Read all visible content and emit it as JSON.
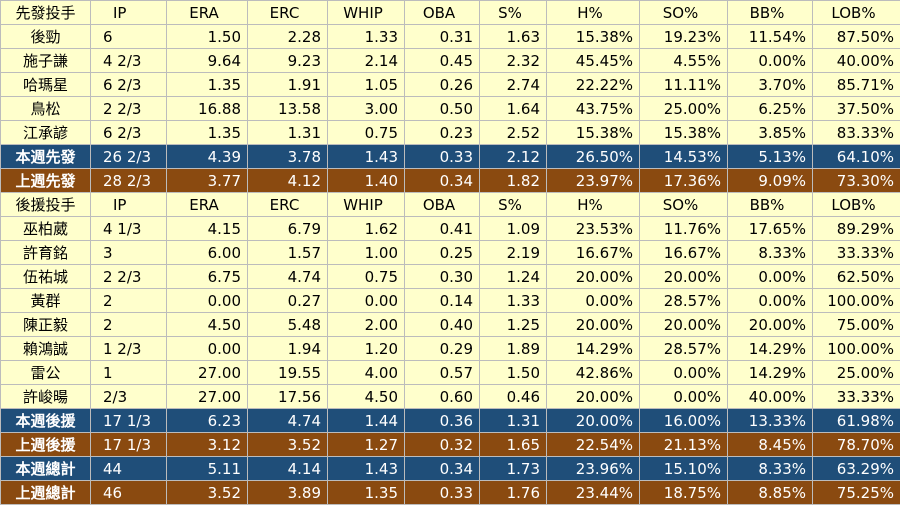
{
  "colors": {
    "row_bg": "#ffffcc",
    "summary_blue": "#1f4e79",
    "summary_orange": "#8a4a10",
    "grid": "#bcbcbc"
  },
  "starters_header": [
    "先發投手",
    "IP",
    "ERA",
    "ERC",
    "WHIP",
    "OBA",
    "S%",
    "H%",
    "SO%",
    "BB%",
    "LOB%"
  ],
  "starters": [
    [
      "後勁",
      "6",
      "1.50",
      "2.28",
      "1.33",
      "0.31",
      "1.63",
      "15.38%",
      "19.23%",
      "11.54%",
      "87.50%"
    ],
    [
      "施子謙",
      "4 2/3",
      "9.64",
      "9.23",
      "2.14",
      "0.45",
      "2.32",
      "45.45%",
      "4.55%",
      "0.00%",
      "40.00%"
    ],
    [
      "哈瑪星",
      "6 2/3",
      "1.35",
      "1.91",
      "1.05",
      "0.26",
      "2.74",
      "22.22%",
      "11.11%",
      "3.70%",
      "85.71%"
    ],
    [
      "鳥松",
      "2 2/3",
      "16.88",
      "13.58",
      "3.00",
      "0.50",
      "1.64",
      "43.75%",
      "25.00%",
      "6.25%",
      "37.50%"
    ],
    [
      "江承諺",
      "6 2/3",
      "1.35",
      "1.31",
      "0.75",
      "0.23",
      "2.52",
      "15.38%",
      "15.38%",
      "3.85%",
      "83.33%"
    ]
  ],
  "starters_this_week": [
    "本週先發",
    "26 2/3",
    "4.39",
    "3.78",
    "1.43",
    "0.33",
    "2.12",
    "26.50%",
    "14.53%",
    "5.13%",
    "64.10%"
  ],
  "starters_last_week": [
    "上週先發",
    "28 2/3",
    "3.77",
    "4.12",
    "1.40",
    "0.34",
    "1.82",
    "23.97%",
    "17.36%",
    "9.09%",
    "73.30%"
  ],
  "relievers_header": [
    "後援投手",
    "IP",
    "ERA",
    "ERC",
    "WHIP",
    "OBA",
    "S%",
    "H%",
    "SO%",
    "BB%",
    "LOB%"
  ],
  "relievers": [
    [
      "巫柏葳",
      "4 1/3",
      "4.15",
      "6.79",
      "1.62",
      "0.41",
      "1.09",
      "23.53%",
      "11.76%",
      "17.65%",
      "89.29%"
    ],
    [
      "許育銘",
      "3",
      "6.00",
      "1.57",
      "1.00",
      "0.25",
      "2.19",
      "16.67%",
      "16.67%",
      "8.33%",
      "33.33%"
    ],
    [
      "伍祐城",
      "2 2/3",
      "6.75",
      "4.74",
      "0.75",
      "0.30",
      "1.24",
      "20.00%",
      "20.00%",
      "0.00%",
      "62.50%"
    ],
    [
      "黃群",
      "2",
      "0.00",
      "0.27",
      "0.00",
      "0.14",
      "1.33",
      "0.00%",
      "28.57%",
      "0.00%",
      "100.00%"
    ],
    [
      "陳正毅",
      "2",
      "4.50",
      "5.48",
      "2.00",
      "0.40",
      "1.25",
      "20.00%",
      "20.00%",
      "20.00%",
      "75.00%"
    ],
    [
      "賴鴻誠",
      "1 2/3",
      "0.00",
      "1.94",
      "1.20",
      "0.29",
      "1.89",
      "14.29%",
      "28.57%",
      "14.29%",
      "100.00%"
    ],
    [
      "雷公",
      "1",
      "27.00",
      "19.55",
      "4.00",
      "0.57",
      "1.50",
      "42.86%",
      "0.00%",
      "14.29%",
      "25.00%"
    ],
    [
      "許峻暘",
      "2/3",
      "27.00",
      "17.56",
      "4.50",
      "0.60",
      "0.46",
      "20.00%",
      "0.00%",
      "40.00%",
      "33.33%"
    ]
  ],
  "relievers_this_week": [
    "本週後援",
    "17 1/3",
    "6.23",
    "4.74",
    "1.44",
    "0.36",
    "1.31",
    "20.00%",
    "16.00%",
    "13.33%",
    "61.98%"
  ],
  "relievers_last_week": [
    "上週後援",
    "17 1/3",
    "3.12",
    "3.52",
    "1.27",
    "0.32",
    "1.65",
    "22.54%",
    "21.13%",
    "8.45%",
    "78.70%"
  ],
  "total_this_week": [
    "本週總計",
    "44",
    "5.11",
    "4.14",
    "1.43",
    "0.34",
    "1.73",
    "23.96%",
    "15.10%",
    "8.33%",
    "63.29%"
  ],
  "total_last_week": [
    "上週總計",
    "46",
    "3.52",
    "3.89",
    "1.35",
    "0.33",
    "1.76",
    "23.44%",
    "18.75%",
    "8.85%",
    "75.25%"
  ]
}
